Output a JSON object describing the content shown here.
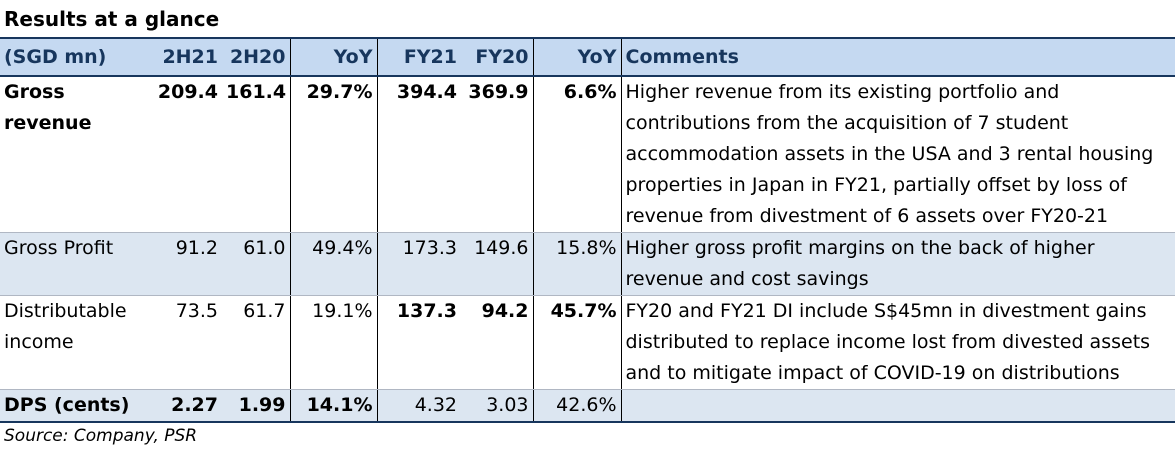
{
  "title": "Results at a glance",
  "headers": [
    "(SGD mn)",
    "2H21",
    "2H20",
    "YoY",
    "FY21",
    "FY20",
    "YoY",
    "Comments"
  ],
  "rows": [
    {
      "label": "Gross revenue",
      "h21": "209.4",
      "h20": "161.4",
      "hyoy": "29.7%",
      "fy21": "394.4",
      "fy20": "369.9",
      "fyyoy": "6.6%",
      "comment": "Higher revenue from its existing portfolio and contributions from the acquisition of 7 student accommodation assets in the USA and 3 rental housing properties in Japan in FY21, partially offset by loss of revenue from divestment of 6 assets over FY20-21"
    },
    {
      "label": "Gross Profit",
      "h21": "91.2",
      "h20": "61.0",
      "hyoy": "49.4%",
      "fy21": "173.3",
      "fy20": "149.6",
      "fyyoy": "15.8%",
      "comment": "Higher gross profit margins on the back of higher revenue and cost savings"
    },
    {
      "label": "Distributable income",
      "h21": "73.5",
      "h20": "61.7",
      "hyoy": "19.1%",
      "fy21": "137.3",
      "fy20": "94.2",
      "fyyoy": "45.7%",
      "comment": "FY20 and FY21 DI include S$45mn in divestment gains distributed to replace income lost from divested assets and to  mitigate impact of COVID-19 on distributions"
    },
    {
      "label": "DPS (cents)",
      "h21": "2.27",
      "h20": "1.99",
      "hyoy": "14.1%",
      "fy21": "4.32",
      "fy20": "3.03",
      "fyyoy": "42.6%",
      "comment": ""
    }
  ],
  "source": "Source: Company, PSR"
}
